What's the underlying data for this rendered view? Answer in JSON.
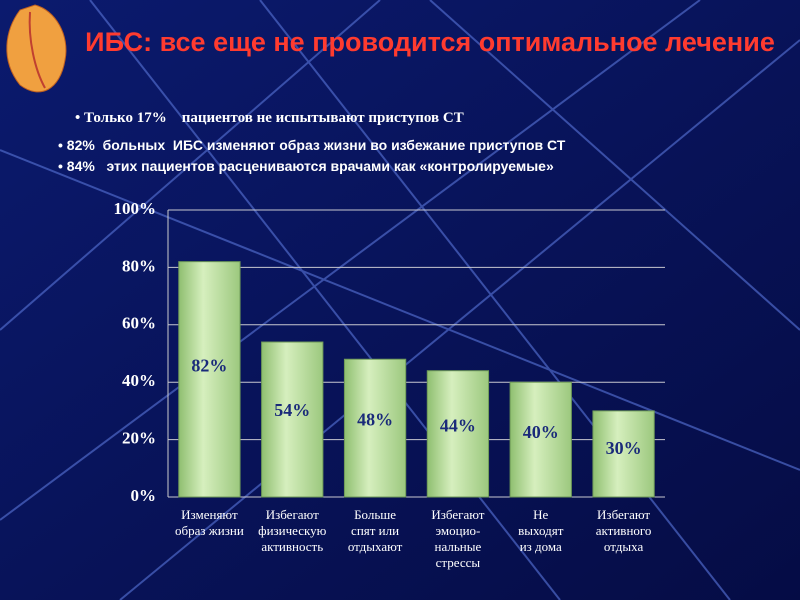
{
  "chart_data": {
    "type": "bar",
    "title": "ИБС: все еще не проводится оптимальное лечение",
    "bullets": [
      "Только 17%    пациентов не испытывают приступов СТ",
      "82%  больных  ИБС изменяют образ жизни во избежание приступов СТ",
      "84%   этих пациентов расцениваются врачами как «контролируемые»"
    ],
    "categories": [
      "Изменяют\nобраз жизни",
      "Избегают\nфизическую\nактивность",
      "Больше\nспят или\nотдыхают",
      "Избегают\nэмоцио-\nнальные\nстрессы",
      "Не\nвыходят\nиз дома",
      "Избегают\nактивного\nотдыха"
    ],
    "values": [
      82,
      54,
      48,
      44,
      40,
      30
    ],
    "value_labels": [
      "82%",
      "54%",
      "48%",
      "44%",
      "40%",
      "30%"
    ],
    "color": "#b5d99a",
    "ylim": [
      0,
      100
    ],
    "yticks": [
      {
        "value": 0,
        "label": "0%"
      },
      {
        "value": 20,
        "label": "20%"
      },
      {
        "value": 40,
        "label": "40%"
      },
      {
        "value": 60,
        "label": "60%"
      },
      {
        "value": 80,
        "label": "80%"
      },
      {
        "value": 100,
        "label": "100%"
      }
    ],
    "grid": true
  }
}
